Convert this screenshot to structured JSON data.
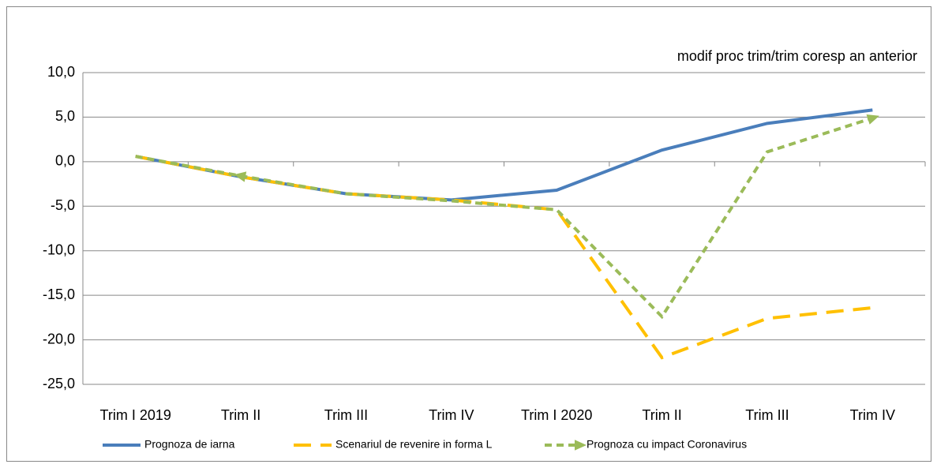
{
  "chart_data": {
    "type": "line",
    "annotation": "modif proc trim/trim coresp an anterior",
    "categories": [
      "Trim I 2019",
      "Trim II",
      "Trim III",
      "Trim IV",
      "Trim I 2020",
      "Trim II",
      "Trim III",
      "Trim IV"
    ],
    "series": [
      {
        "name": "Prognoza de iarna",
        "color": "#4a7ebb",
        "values": [
          0.6,
          -1.7,
          -3.6,
          -4.3,
          -3.2,
          1.3,
          4.3,
          5.8
        ]
      },
      {
        "name": "Scenariul de revenire in forma L",
        "color": "#ffc000",
        "values": [
          0.6,
          -1.7,
          -3.6,
          -4.3,
          -5.4,
          -22.0,
          -17.6,
          -16.4
        ]
      },
      {
        "name": "Prognoza cu impact Coronavirus",
        "color": "#9bbb59",
        "values": [
          0.6,
          -1.6,
          -3.6,
          -4.4,
          -5.4,
          -17.4,
          1.1,
          4.9
        ]
      }
    ],
    "ylim": [
      -25,
      10
    ],
    "yticks": [
      {
        "value": -25,
        "label": "-25,0"
      },
      {
        "value": -20,
        "label": "-20,0"
      },
      {
        "value": -15,
        "label": "-15,0"
      },
      {
        "value": -10,
        "label": "-10,0"
      },
      {
        "value": -5,
        "label": "-5,0"
      },
      {
        "value": 0,
        "label": "0,0"
      },
      {
        "value": 5,
        "label": "5,0"
      },
      {
        "value": 10,
        "label": "10,0"
      }
    ],
    "grid": true,
    "legend": "bottom"
  }
}
